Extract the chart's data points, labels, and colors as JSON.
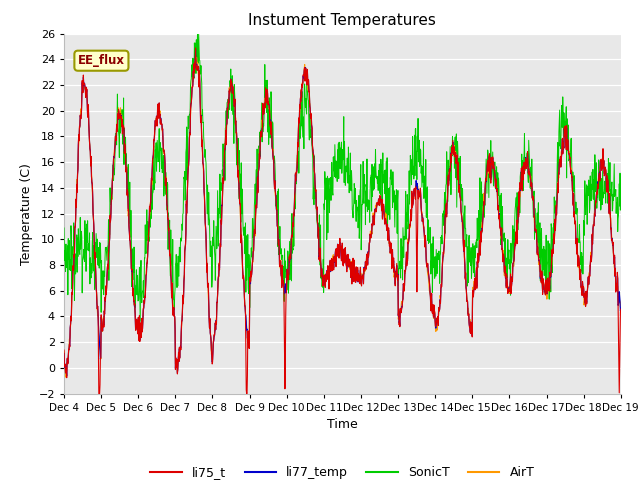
{
  "title": "Instument Temperatures",
  "xlabel": "Time",
  "ylabel": "Temperature (C)",
  "ylim": [
    -2,
    26
  ],
  "yticks": [
    -2,
    0,
    2,
    4,
    6,
    8,
    10,
    12,
    14,
    16,
    18,
    20,
    22,
    24,
    26
  ],
  "date_labels": [
    "Dec 4",
    "Dec 5",
    "Dec 6",
    "Dec 7",
    "Dec 8",
    "Dec 9",
    "Dec 10",
    "Dec 11",
    "Dec 12",
    "Dec 13",
    "Dec 14",
    "Dec 15",
    "Dec 16",
    "Dec 17",
    "Dec 18",
    "Dec 19"
  ],
  "colors": {
    "li75_t": "#dd0000",
    "li77_temp": "#0000cc",
    "SonicT": "#00cc00",
    "AirT": "#ff9900"
  },
  "bg_color": "#e8e8e8",
  "annotation_text": "EE_flux",
  "annotation_bg": "#ffffcc",
  "annotation_border": "#999900",
  "legend_labels": [
    "li75_t",
    "li77_temp",
    "SonicT",
    "AirT"
  ]
}
